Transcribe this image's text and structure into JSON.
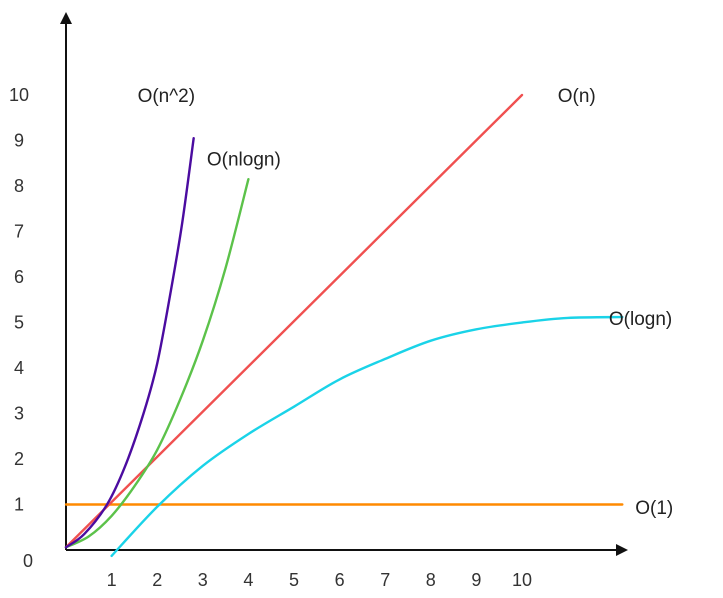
{
  "chart_data": {
    "type": "line",
    "title": "",
    "xlabel": "",
    "ylabel": "",
    "grid": false,
    "xlim": [
      0,
      12.3
    ],
    "ylim": [
      0,
      10.6
    ],
    "origin_label": "0",
    "x_ticks": [
      1,
      2,
      3,
      4,
      5,
      6,
      7,
      8,
      9,
      10
    ],
    "y_ticks": [
      1,
      2,
      3,
      4,
      5,
      6,
      7,
      8,
      9,
      10
    ],
    "series": [
      {
        "name": "O(n^2)",
        "color": "#4b0ca0",
        "points": [
          [
            0,
            0.06
          ],
          [
            0.4,
            0.35
          ],
          [
            0.9,
            1.0
          ],
          [
            1.3,
            1.85
          ],
          [
            1.7,
            3.0
          ],
          [
            2.0,
            4.1
          ],
          [
            2.3,
            5.7
          ],
          [
            2.55,
            7.2
          ],
          [
            2.8,
            9.05
          ]
        ]
      },
      {
        "name": "O(nlogn)",
        "color": "#5cc24a",
        "points": [
          [
            0,
            0.06
          ],
          [
            0.5,
            0.3
          ],
          [
            1.0,
            0.75
          ],
          [
            1.5,
            1.4
          ],
          [
            2.0,
            2.2
          ],
          [
            2.5,
            3.3
          ],
          [
            3.0,
            4.6
          ],
          [
            3.5,
            6.2
          ],
          [
            4.0,
            8.15
          ]
        ]
      },
      {
        "name": "O(n)",
        "color": "#f05050",
        "points": [
          [
            0,
            0.06
          ],
          [
            10,
            10.0
          ]
        ]
      },
      {
        "name": "O(logn)",
        "color": "#1ad3e8",
        "points": [
          [
            1.0,
            -0.13
          ],
          [
            2.0,
            0.95
          ],
          [
            3.0,
            1.85
          ],
          [
            4.0,
            2.55
          ],
          [
            5.0,
            3.15
          ],
          [
            6.0,
            3.75
          ],
          [
            7.0,
            4.2
          ],
          [
            8.0,
            4.6
          ],
          [
            9.0,
            4.85
          ],
          [
            10.0,
            5.0
          ],
          [
            11.0,
            5.1
          ],
          [
            12.2,
            5.12
          ]
        ]
      },
      {
        "name": "O(1)",
        "color": "#ff8a00",
        "points": [
          [
            0,
            1.0
          ],
          [
            12.2,
            1.0
          ]
        ]
      }
    ],
    "label_anchors": [
      {
        "series": "O(n^2)",
        "x": 2.2,
        "y": 10.0
      },
      {
        "series": "O(nlogn)",
        "x": 3.9,
        "y": 8.6
      },
      {
        "series": "O(n)",
        "x": 11.2,
        "y": 10.0
      },
      {
        "series": "O(logn)",
        "x": 12.6,
        "y": 5.1
      },
      {
        "series": "O(1)",
        "x": 12.9,
        "y": 0.95
      }
    ]
  }
}
